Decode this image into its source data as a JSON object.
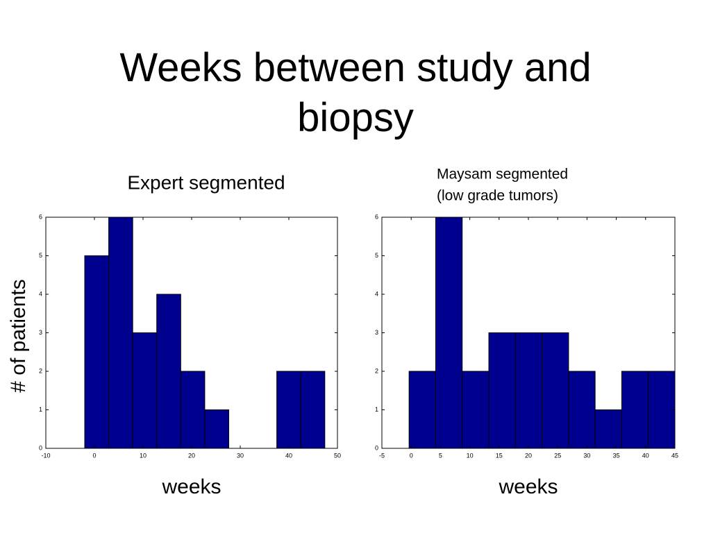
{
  "title": "Weeks between study and biopsy",
  "ylabel": "# of patients",
  "chart_data": [
    {
      "type": "histogram",
      "title": [
        "Expert segmented"
      ],
      "xlabel": "weeks",
      "color": "#00008f",
      "bins": [
        -2,
        2.94,
        7.88,
        12.82,
        17.76,
        22.7,
        27.64,
        32.58,
        37.52,
        42.46,
        47.4
      ],
      "values": [
        5,
        6,
        3,
        4,
        2,
        1,
        0,
        0,
        2,
        2
      ],
      "xlim": [
        -10,
        50
      ],
      "xticks": [
        -10,
        0,
        10,
        20,
        30,
        40,
        50
      ],
      "ylim": [
        0,
        6
      ],
      "yticks": [
        0,
        1,
        2,
        3,
        4,
        5,
        6
      ]
    },
    {
      "type": "histogram",
      "title": [
        "Maysam segmented",
        "(low grade tumors)"
      ],
      "xlabel": "weeks",
      "color": "#00008f",
      "bins": [
        -0.36,
        4.18,
        8.71,
        13.25,
        17.78,
        22.32,
        26.86,
        31.39,
        35.93,
        40.46,
        45.0
      ],
      "values": [
        2,
        6,
        2,
        3,
        3,
        3,
        2,
        1,
        2,
        2
      ],
      "xlim": [
        -5,
        45
      ],
      "xticks": [
        -5,
        0,
        5,
        10,
        15,
        20,
        25,
        30,
        35,
        40,
        45
      ],
      "ylim": [
        0,
        6
      ],
      "yticks": [
        0,
        1,
        2,
        3,
        4,
        5,
        6
      ]
    }
  ]
}
